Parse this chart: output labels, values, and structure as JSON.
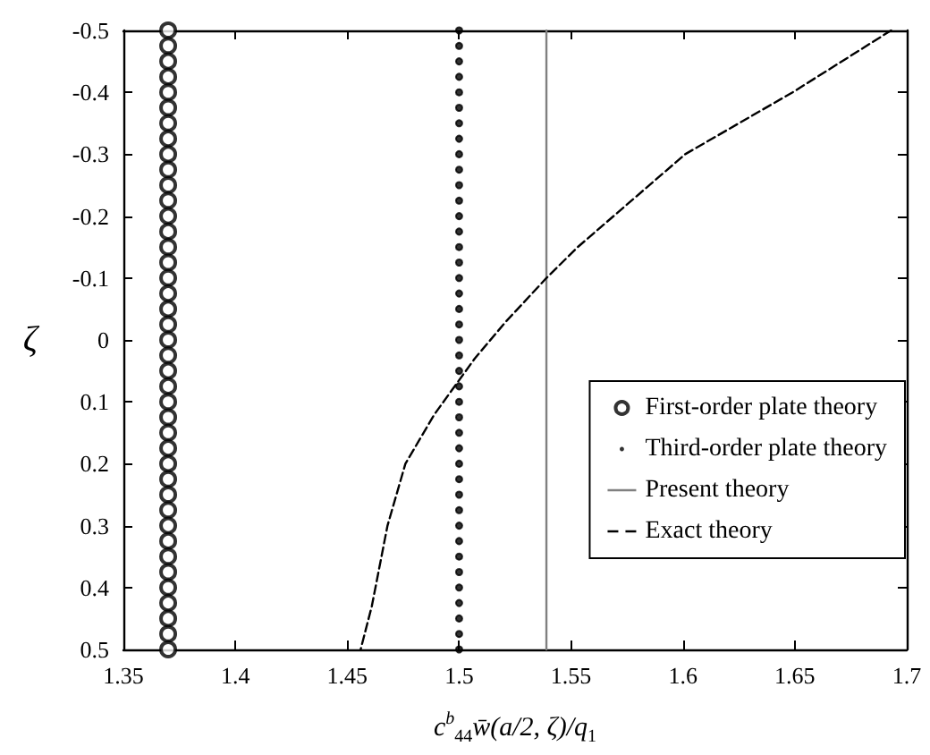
{
  "chart_data": {
    "type": "line",
    "xlabel": "c$^{b}$$_{44}$w̄(a/2, ζ)/q$_{1}$",
    "ylabel": "ζ",
    "xlim": [
      1.35,
      1.7
    ],
    "xticks": [
      1.35,
      1.4,
      1.45,
      1.5,
      1.55,
      1.6,
      1.65,
      1.7
    ],
    "ylim": [
      0.5,
      -0.5
    ],
    "yticks": [
      -0.5,
      -0.4,
      -0.3,
      -0.2,
      -0.1,
      0,
      0.1,
      0.2,
      0.3,
      0.4,
      0.5
    ],
    "grid": false,
    "legend": "right",
    "series": [
      {
        "name": "First-order plate theory",
        "type": "scatter",
        "marker": "circle",
        "color": "#000000",
        "x": [
          1.37,
          1.37,
          1.37,
          1.37,
          1.37,
          1.37,
          1.37,
          1.37,
          1.37,
          1.37,
          1.37,
          1.37,
          1.37,
          1.37,
          1.37,
          1.37,
          1.37,
          1.37,
          1.37,
          1.37,
          1.37,
          1.37,
          1.37,
          1.37,
          1.37,
          1.37,
          1.37,
          1.37,
          1.37,
          1.37,
          1.37,
          1.37,
          1.37,
          1.37,
          1.37,
          1.37,
          1.37,
          1.37,
          1.37,
          1.37,
          1.37
        ],
        "values": [
          -0.5,
          -0.475,
          -0.45,
          -0.425,
          -0.4,
          -0.375,
          -0.35,
          -0.325,
          -0.3,
          -0.275,
          -0.25,
          -0.225,
          -0.2,
          -0.175,
          -0.15,
          -0.125,
          -0.1,
          -0.075,
          -0.05,
          -0.025,
          0,
          0.025,
          0.05,
          0.075,
          0.1,
          0.125,
          0.15,
          0.175,
          0.2,
          0.225,
          0.25,
          0.275,
          0.3,
          0.325,
          0.35,
          0.375,
          0.4,
          0.425,
          0.45,
          0.475,
          0.5
        ]
      },
      {
        "name": "Third-order plate theory",
        "type": "scatter",
        "marker": "dot",
        "color": "#000000",
        "x": [
          1.5,
          1.5,
          1.5,
          1.5,
          1.5,
          1.5,
          1.5,
          1.5,
          1.5,
          1.5,
          1.5,
          1.5,
          1.5,
          1.5,
          1.5,
          1.5,
          1.5,
          1.5,
          1.5,
          1.5,
          1.5,
          1.5,
          1.5,
          1.5,
          1.5,
          1.5,
          1.5,
          1.5,
          1.5,
          1.5,
          1.5,
          1.5,
          1.5,
          1.5,
          1.5,
          1.5,
          1.5,
          1.5,
          1.5,
          1.5,
          1.5
        ],
        "values": [
          -0.5,
          -0.475,
          -0.45,
          -0.425,
          -0.4,
          -0.375,
          -0.35,
          -0.325,
          -0.3,
          -0.275,
          -0.25,
          -0.225,
          -0.2,
          -0.175,
          -0.15,
          -0.125,
          -0.1,
          -0.075,
          -0.05,
          -0.025,
          0,
          0.025,
          0.05,
          0.075,
          0.1,
          0.125,
          0.15,
          0.175,
          0.2,
          0.225,
          0.25,
          0.275,
          0.3,
          0.325,
          0.35,
          0.375,
          0.4,
          0.425,
          0.45,
          0.475,
          0.5
        ]
      },
      {
        "name": "Present theory",
        "line_style": "solid",
        "color": "#808080",
        "x": [
          1.539,
          1.539
        ],
        "values": [
          -0.5,
          0.5
        ]
      },
      {
        "name": "Exact theory",
        "line_style": "dashed",
        "color": "#000000",
        "x": [
          1.693,
          1.649,
          1.601,
          1.553,
          1.539,
          1.521,
          1.507,
          1.501,
          1.489,
          1.476,
          1.468,
          1.461,
          1.456
        ],
        "values": [
          -0.5,
          -0.4,
          -0.3,
          -0.15,
          -0.1,
          -0.03,
          0.03,
          0.06,
          0.12,
          0.2,
          0.3,
          0.43,
          0.5
        ]
      }
    ]
  }
}
